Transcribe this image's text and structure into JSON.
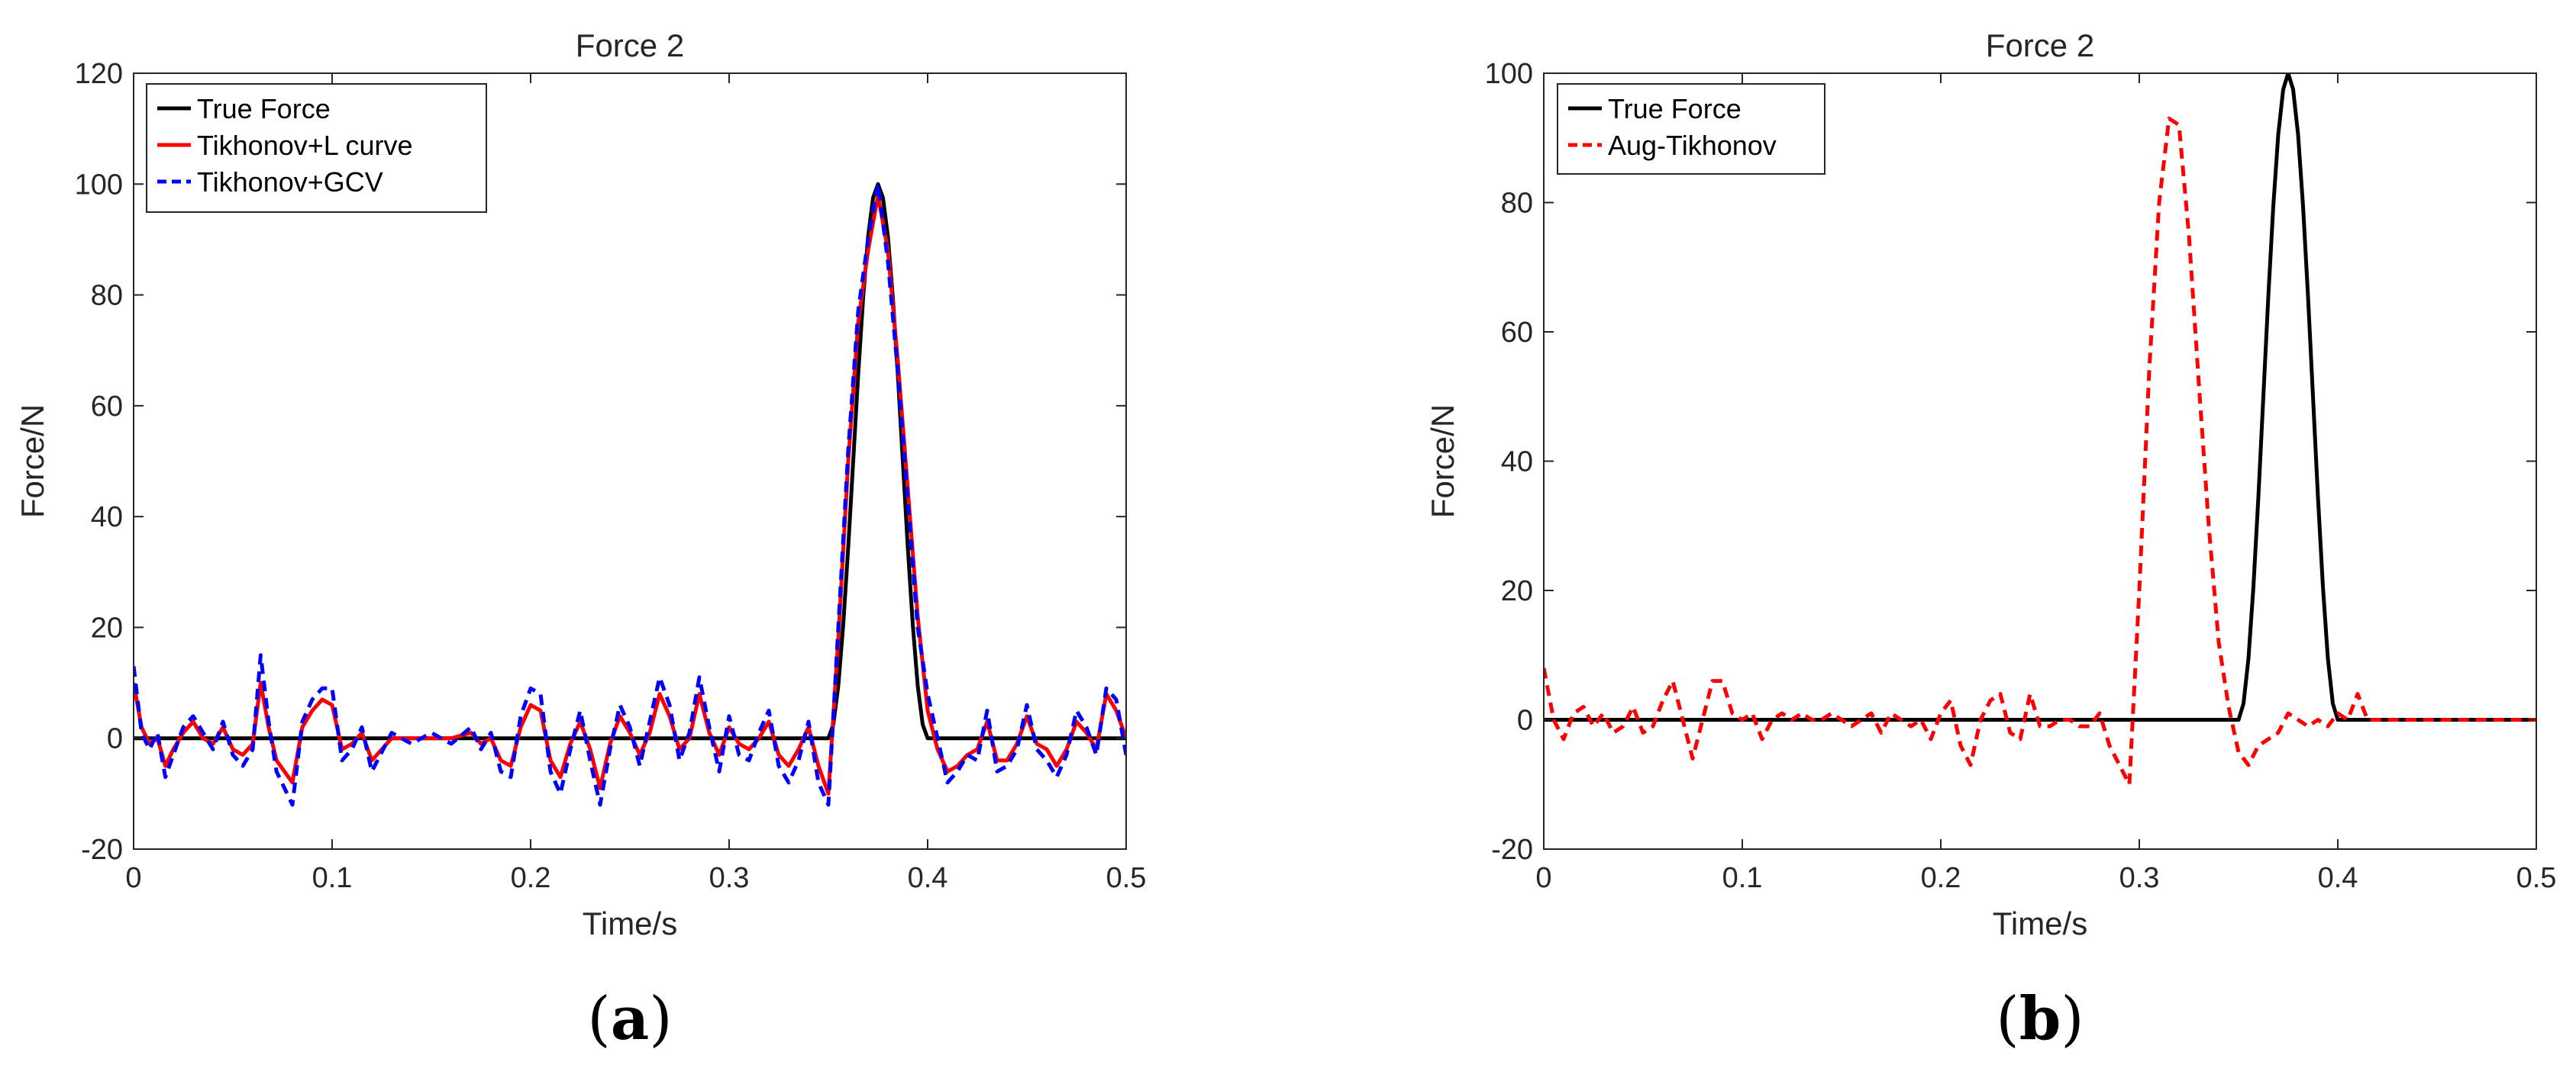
{
  "chart_data": [
    {
      "type": "line",
      "panel_label": {
        "open": "(",
        "letter": "a",
        "close": ")"
      },
      "title": "Force 2",
      "xlabel": "Time/s",
      "ylabel": "Force/N",
      "xlim": [
        0,
        0.5
      ],
      "ylim": [
        -20,
        120
      ],
      "xticks": [
        0,
        0.1,
        0.2,
        0.3,
        0.4,
        0.5
      ],
      "xtick_labels": [
        "0",
        "0.1",
        "0.2",
        "0.3",
        "0.4",
        "0.5"
      ],
      "yticks": [
        -20,
        0,
        20,
        40,
        60,
        80,
        100,
        120
      ],
      "ytick_labels": [
        "-20",
        "0",
        "20",
        "40",
        "60",
        "80",
        "100",
        "120"
      ],
      "grid": false,
      "legend_position": "top-left",
      "series": [
        {
          "name": "True Force",
          "color": "#000000",
          "dash": "solid",
          "x": [
            0,
            0.35,
            0.3525,
            0.355,
            0.3575,
            0.36,
            0.3625,
            0.365,
            0.3675,
            0.37,
            0.3725,
            0.375,
            0.3775,
            0.38,
            0.3825,
            0.385,
            0.3875,
            0.39,
            0.3925,
            0.395,
            0.3975,
            0.4,
            0.5
          ],
          "y": [
            0,
            0,
            2.5,
            9.5,
            20.6,
            34.5,
            50,
            65.5,
            79.4,
            90.5,
            97.5,
            100,
            97.5,
            90.5,
            79.4,
            65.5,
            50,
            34.5,
            20.6,
            9.5,
            2.5,
            0,
            0
          ]
        },
        {
          "name": "Tikhonov+L curve",
          "color": "#ff0000",
          "dash": "solid",
          "x": [
            0,
            0.004,
            0.008,
            0.012,
            0.016,
            0.02,
            0.025,
            0.03,
            0.035,
            0.04,
            0.045,
            0.05,
            0.055,
            0.06,
            0.064,
            0.068,
            0.072,
            0.076,
            0.08,
            0.085,
            0.09,
            0.095,
            0.1,
            0.105,
            0.11,
            0.115,
            0.12,
            0.13,
            0.14,
            0.15,
            0.16,
            0.17,
            0.175,
            0.18,
            0.185,
            0.19,
            0.195,
            0.2,
            0.205,
            0.21,
            0.215,
            0.22,
            0.225,
            0.23,
            0.235,
            0.24,
            0.245,
            0.25,
            0.255,
            0.26,
            0.265,
            0.27,
            0.275,
            0.28,
            0.285,
            0.29,
            0.295,
            0.3,
            0.305,
            0.31,
            0.315,
            0.32,
            0.325,
            0.33,
            0.335,
            0.34,
            0.345,
            0.35,
            0.355,
            0.36,
            0.365,
            0.37,
            0.375,
            0.38,
            0.385,
            0.39,
            0.395,
            0.4,
            0.405,
            0.41,
            0.415,
            0.42,
            0.425,
            0.43,
            0.435,
            0.44,
            0.445,
            0.45,
            0.455,
            0.46,
            0.465,
            0.47,
            0.475,
            0.48,
            0.485,
            0.49,
            0.495,
            0.5
          ],
          "y": [
            10,
            2,
            -1,
            0,
            -5,
            -2,
            1,
            3,
            0,
            -1,
            2,
            -2,
            -3,
            -1,
            10,
            2,
            -4,
            -6,
            -8,
            2,
            5,
            7,
            6,
            -2,
            -1,
            1,
            -4,
            0,
            0,
            0,
            0,
            1,
            -1,
            0,
            -4,
            -5,
            2,
            6,
            5,
            -4,
            -7,
            -1,
            3,
            -2,
            -9,
            -1,
            4,
            1,
            -3,
            1,
            8,
            4,
            -2,
            0,
            8,
            1,
            -3,
            2,
            -1,
            -2,
            0,
            3,
            -3,
            -5,
            -2,
            2,
            -5,
            -10,
            18,
            50,
            75,
            88,
            98,
            88,
            68,
            45,
            22,
            5,
            -2,
            -6,
            -5,
            -3,
            -2,
            3,
            -4,
            -4,
            -1,
            4,
            -1,
            -2,
            -5,
            -2,
            3,
            1,
            -2,
            8,
            5,
            0
          ]
        },
        {
          "name": "Tikhonov+GCV",
          "color": "#0000ff",
          "dash": "dashed",
          "x": [
            0,
            0.004,
            0.008,
            0.012,
            0.016,
            0.02,
            0.025,
            0.03,
            0.035,
            0.04,
            0.045,
            0.05,
            0.055,
            0.06,
            0.064,
            0.068,
            0.072,
            0.076,
            0.08,
            0.085,
            0.09,
            0.095,
            0.1,
            0.105,
            0.11,
            0.115,
            0.12,
            0.13,
            0.14,
            0.15,
            0.16,
            0.17,
            0.175,
            0.18,
            0.185,
            0.19,
            0.195,
            0.2,
            0.205,
            0.21,
            0.215,
            0.22,
            0.225,
            0.23,
            0.235,
            0.24,
            0.245,
            0.25,
            0.255,
            0.26,
            0.265,
            0.27,
            0.275,
            0.28,
            0.285,
            0.29,
            0.295,
            0.3,
            0.305,
            0.31,
            0.315,
            0.32,
            0.325,
            0.33,
            0.335,
            0.34,
            0.345,
            0.35,
            0.355,
            0.36,
            0.365,
            0.37,
            0.375,
            0.38,
            0.385,
            0.39,
            0.395,
            0.4,
            0.405,
            0.41,
            0.415,
            0.42,
            0.425,
            0.43,
            0.435,
            0.44,
            0.445,
            0.45,
            0.455,
            0.46,
            0.465,
            0.47,
            0.475,
            0.48,
            0.485,
            0.49,
            0.495,
            0.5
          ],
          "y": [
            13,
            1,
            -2,
            1,
            -7,
            -3,
            2,
            4,
            1,
            -2,
            3,
            -3,
            -5,
            -2,
            15,
            3,
            -6,
            -9,
            -12,
            3,
            7,
            9,
            9,
            -4,
            -2,
            2,
            -6,
            1,
            -1,
            1,
            -1,
            2,
            -2,
            1,
            -6,
            -7,
            4,
            9,
            8,
            -6,
            -10,
            -2,
            5,
            -4,
            -12,
            -2,
            6,
            2,
            -5,
            3,
            11,
            6,
            -4,
            1,
            11,
            2,
            -6,
            4,
            -3,
            -4,
            1,
            5,
            -5,
            -8,
            -4,
            3,
            -8,
            -12,
            20,
            52,
            77,
            90,
            100,
            86,
            66,
            43,
            20,
            8,
            0,
            -8,
            -6,
            -3,
            -4,
            5,
            -6,
            -5,
            -2,
            6,
            -2,
            -4,
            -7,
            -3,
            5,
            2,
            -3,
            9,
            7,
            -3
          ]
        }
      ]
    },
    {
      "type": "line",
      "panel_label": {
        "open": "(",
        "letter": "b",
        "close": ")"
      },
      "title": "Force 2",
      "xlabel": "Time/s",
      "ylabel": "Force/N",
      "xlim": [
        0,
        0.5
      ],
      "ylim": [
        -20,
        100
      ],
      "xticks": [
        0,
        0.1,
        0.2,
        0.3,
        0.4,
        0.5
      ],
      "xtick_labels": [
        "0",
        "0.1",
        "0.2",
        "0.3",
        "0.4",
        "0.5"
      ],
      "yticks": [
        -20,
        0,
        20,
        40,
        60,
        80,
        100
      ],
      "ytick_labels": [
        "-20",
        "0",
        "20",
        "40",
        "60",
        "80",
        "100"
      ],
      "grid": false,
      "legend_position": "top-left",
      "series": [
        {
          "name": "True Force",
          "color": "#000000",
          "dash": "solid",
          "x": [
            0,
            0.35,
            0.3525,
            0.355,
            0.3575,
            0.36,
            0.3625,
            0.365,
            0.3675,
            0.37,
            0.3725,
            0.375,
            0.3775,
            0.38,
            0.3825,
            0.385,
            0.3875,
            0.39,
            0.3925,
            0.395,
            0.3975,
            0.4,
            0.5
          ],
          "y": [
            0,
            0,
            2.5,
            9.5,
            20.6,
            34.5,
            50,
            65.5,
            79.4,
            90.5,
            97.5,
            100,
            97.5,
            90.5,
            79.4,
            65.5,
            50,
            34.5,
            20.6,
            9.5,
            2.5,
            0,
            0
          ]
        },
        {
          "name": "Aug-Tikhonov",
          "color": "#ff0000",
          "dash": "dashed",
          "x": [
            0,
            0.005,
            0.01,
            0.015,
            0.02,
            0.025,
            0.03,
            0.035,
            0.04,
            0.045,
            0.05,
            0.055,
            0.06,
            0.065,
            0.07,
            0.075,
            0.08,
            0.085,
            0.09,
            0.095,
            0.1,
            0.105,
            0.11,
            0.115,
            0.12,
            0.125,
            0.13,
            0.135,
            0.14,
            0.145,
            0.15,
            0.155,
            0.16,
            0.165,
            0.17,
            0.175,
            0.18,
            0.185,
            0.19,
            0.195,
            0.2,
            0.205,
            0.21,
            0.215,
            0.22,
            0.225,
            0.23,
            0.235,
            0.24,
            0.245,
            0.25,
            0.255,
            0.26,
            0.265,
            0.27,
            0.275,
            0.28,
            0.285,
            0.29,
            0.295,
            0.3,
            0.305,
            0.31,
            0.315,
            0.32,
            0.325,
            0.33,
            0.335,
            0.34,
            0.345,
            0.35,
            0.355,
            0.36,
            0.365,
            0.37,
            0.375,
            0.38,
            0.385,
            0.39,
            0.395,
            0.4,
            0.405,
            0.41,
            0.415,
            0.42,
            0.425,
            0.43,
            0.435,
            0.44,
            0.445,
            0.45,
            0.455,
            0.46,
            0.465,
            0.47,
            0.475,
            0.48,
            0.485,
            0.49,
            0.495,
            0.5
          ],
          "y": [
            8,
            0,
            -3,
            1,
            2,
            -1,
            1,
            -2,
            -1,
            2,
            -2,
            -1,
            3,
            6,
            0,
            -6,
            0,
            6,
            6,
            1,
            0,
            1,
            -3,
            0,
            1,
            0,
            1,
            0,
            0,
            1,
            0,
            -1,
            0,
            1,
            -2,
            1,
            0,
            -1,
            0,
            -3,
            1,
            3,
            -4,
            -7,
            0,
            3,
            4,
            -2,
            -3,
            4,
            -1,
            -1,
            0,
            0,
            -1,
            -1,
            1,
            -4,
            -7,
            -10,
            20,
            54,
            80,
            93,
            92,
            75,
            52,
            30,
            12,
            2,
            -5,
            -7,
            -4,
            -3,
            -2,
            1,
            0,
            -1,
            0,
            -1,
            1,
            0,
            4,
            0,
            0,
            0,
            0,
            0,
            0,
            0,
            0,
            0,
            0,
            0,
            0,
            0,
            0,
            0,
            0,
            0,
            0
          ]
        }
      ]
    }
  ]
}
